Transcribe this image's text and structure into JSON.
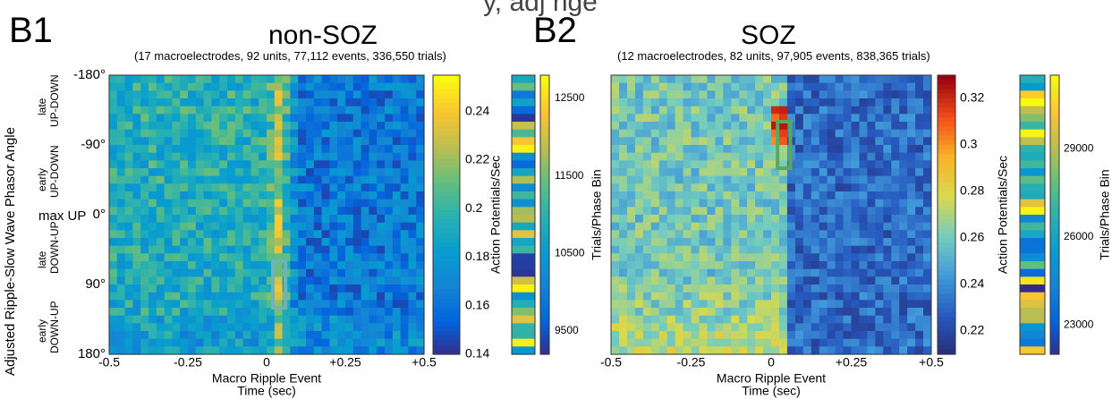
{
  "header_fragment": "y, adj         nge",
  "panels": [
    {
      "letter": "B1",
      "title": "non-SOZ",
      "subtitle": "(17 macroelectrodes, 92 units, 77,112 events, 336,550 trials)",
      "ylabel": "Adjusted Ripple-Slow Wave Phasor Angle",
      "phase_labels": [
        {
          "l1": "late",
          "l2": "UP-DOWN"
        },
        {
          "l1": "early",
          "l2": "UP-DOWN"
        },
        {
          "l1": "late",
          "l2": "DOWN-UP"
        },
        {
          "l1": "early",
          "l2": "DOWN-UP"
        }
      ],
      "max_up_label": "max UP"
    },
    {
      "letter": "B2",
      "title": "SOZ",
      "subtitle": "(12 macroelectrodes, 82 units, 97,905 events, 838,365 trials)"
    }
  ],
  "chart_data": [
    {
      "type": "heatmap",
      "panel": "B1",
      "xlabel": "Macro Ripple Event",
      "xlabel2": "Time (sec)",
      "xticks": [
        "-0.5",
        "-0.25",
        "0",
        "+0.25",
        "+0.5"
      ],
      "xtick_values": [
        -0.5,
        -0.25,
        0,
        0.25,
        0.5
      ],
      "yticks": [
        "-180°",
        "-90°",
        "0°",
        "90°",
        "180°"
      ],
      "ytick_values": [
        -180,
        -90,
        0,
        90,
        180
      ],
      "xlim": [
        -0.5,
        0.5
      ],
      "ylim": [
        -180,
        180
      ],
      "colorbar": {
        "label": "Action Potentials/Sec",
        "ticks": [
          "0.24",
          "0.22",
          "0.2",
          "0.18",
          "0.16",
          "0.14"
        ],
        "tick_values": [
          0.24,
          0.22,
          0.2,
          0.18,
          0.16,
          0.14
        ],
        "range": [
          0.14,
          0.255
        ]
      },
      "highlight": {
        "x": [
          0.02,
          0.06
        ],
        "y": [
          60,
          120
        ],
        "color": "#6fb4b8"
      },
      "trials_bar": {
        "label": "Trials/Phase Bin",
        "ticks": [
          "12500",
          "11500",
          "10500",
          "9500"
        ],
        "tick_values": [
          12500,
          11500,
          10500,
          9500
        ],
        "range": [
          9200,
          12800
        ]
      }
    },
    {
      "type": "heatmap",
      "panel": "B2",
      "xlabel": "Macro Ripple Event",
      "xlabel2": "Time (sec)",
      "xticks": [
        "-0.5",
        "-0.25",
        "0",
        "+0.25",
        "+0.5"
      ],
      "xtick_values": [
        -0.5,
        -0.25,
        0,
        0.25,
        0.5
      ],
      "xlim": [
        -0.5,
        0.5
      ],
      "ylim": [
        -180,
        180
      ],
      "colorbar": {
        "label": "Action Potentials/Sec",
        "ticks": [
          "0.32",
          "0.3",
          "0.28",
          "0.26",
          "0.24",
          "0.22"
        ],
        "tick_values": [
          0.32,
          0.3,
          0.28,
          0.26,
          0.24,
          0.22
        ],
        "range": [
          0.21,
          0.33
        ]
      },
      "highlight": {
        "x": [
          0.02,
          0.06
        ],
        "y": [
          -120,
          -60
        ],
        "color": "#5aa860"
      },
      "trials_bar": {
        "label": "Trials/Phase Bin",
        "ticks": [
          "29000",
          "26000",
          "23000"
        ],
        "tick_values": [
          29000,
          26000,
          23000
        ],
        "range": [
          22000,
          31500
        ]
      }
    }
  ]
}
